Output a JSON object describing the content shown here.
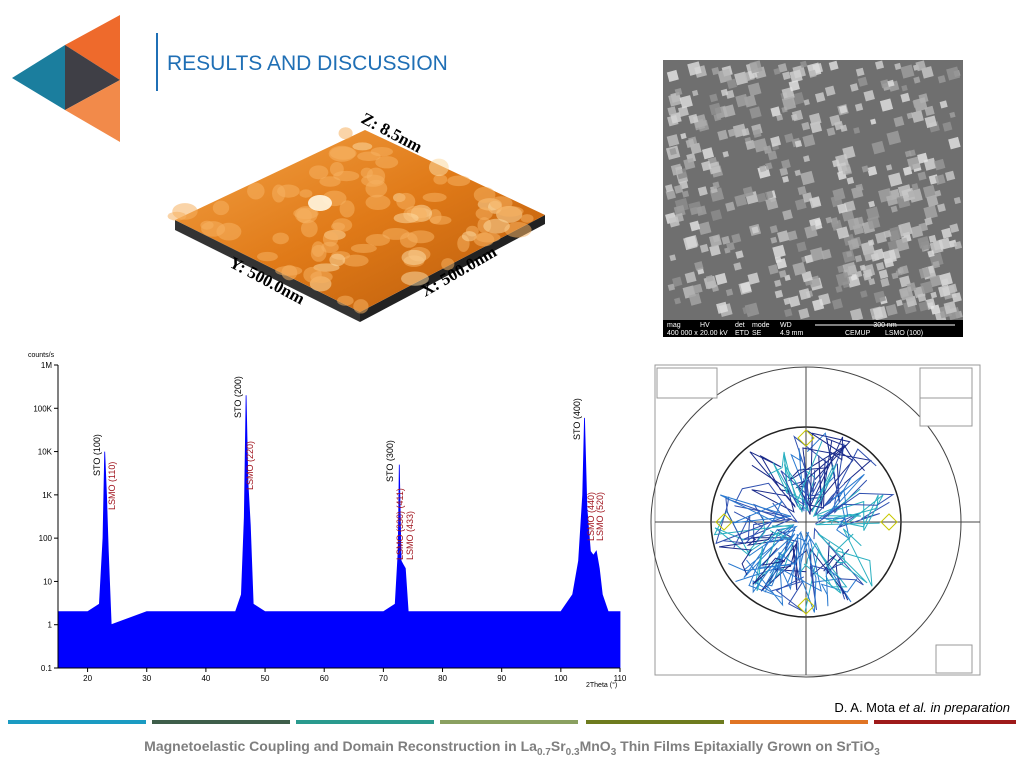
{
  "header": {
    "title": "RESULTS AND DISCUSSION"
  },
  "afm": {
    "z_label": "Z: 8.5nm",
    "y_label": "Y: 500.0nm",
    "x_label": "X: 500.0nm"
  },
  "sem": {
    "info": [
      [
        "mag",
        "400 000 x"
      ],
      [
        "HV",
        "20.00 kV"
      ],
      [
        "det",
        "ETD"
      ],
      [
        "mode",
        "SE"
      ],
      [
        "WD",
        "4.9 mm"
      ]
    ],
    "scale": "300 nm",
    "footer": [
      "CEMUP",
      "LSMO (100)"
    ]
  },
  "chart_data": {
    "type": "area",
    "y_label": "counts/s",
    "x_label": "2Theta (°)",
    "log_y": true,
    "xlim": [
      15,
      110
    ],
    "ylim": [
      0.1,
      1000000
    ],
    "xticks": [
      20,
      30,
      40,
      50,
      60,
      70,
      80,
      90,
      100,
      110
    ],
    "yticks": [
      0.1,
      1,
      10,
      100,
      {
        "value": 1000,
        "label": "1K"
      },
      {
        "value": 10000,
        "label": "10K"
      },
      {
        "value": 100000,
        "label": "100K"
      },
      {
        "value": 1000000,
        "label": "1M"
      }
    ],
    "series": [
      {
        "color": "#0000ff",
        "x": [
          15,
          20,
          22,
          22.6,
          22.9,
          23.2,
          23.5,
          24,
          30,
          40,
          45,
          46,
          46.5,
          46.8,
          47.1,
          47.5,
          48,
          50,
          60,
          70,
          72,
          72.5,
          72.7,
          73,
          73.3,
          73.7,
          74.2,
          80,
          90,
          100,
          102,
          103,
          103.7,
          104,
          104.4,
          105,
          105.5,
          106,
          106.5,
          107,
          108,
          110
        ],
        "values": [
          2,
          2,
          3,
          100,
          10000,
          1000,
          50,
          1,
          2,
          2,
          2,
          5,
          300,
          200000,
          2000,
          200,
          3,
          2,
          2,
          2,
          3,
          50,
          5000,
          30,
          25,
          20,
          2,
          2,
          2,
          2,
          5,
          30,
          1000,
          60000,
          500,
          50,
          40,
          50,
          20,
          5,
          2,
          2
        ]
      }
    ],
    "annotations": [
      {
        "text": "STO (100)",
        "color": "#000000"
      },
      {
        "text": "LSMO (110)",
        "color": "#a0141e"
      },
      {
        "text": "STO (200)",
        "color": "#000000"
      },
      {
        "text": "LSMO (220)",
        "color": "#a0141e"
      },
      {
        "text": "STO (300)",
        "color": "#000000"
      },
      {
        "text": "LSMO (330) (411)",
        "color": "#a0141e"
      },
      {
        "text": "LSMO (433)",
        "color": "#a0141e"
      },
      {
        "text": "STO (400)",
        "color": "#000000"
      },
      {
        "text": "LSMO (440)",
        "color": "#a0141e"
      },
      {
        "text": "LSMO (520)",
        "color": "#a0141e"
      }
    ]
  },
  "citation": {
    "authors": "D. A. Mota",
    "note": "et al. in preparation"
  },
  "footer": {
    "parts": [
      {
        "text": "Magnetoelastic Coupling and Domain Reconstruction in La"
      },
      {
        "sub": "0.7"
      },
      {
        "text": "Sr"
      },
      {
        "sub": "0.3"
      },
      {
        "text": "MnO"
      },
      {
        "sub": "3"
      },
      {
        "text": " Thin Films Epitaxially Grown on SrTiO"
      },
      {
        "sub": "3"
      }
    ]
  }
}
